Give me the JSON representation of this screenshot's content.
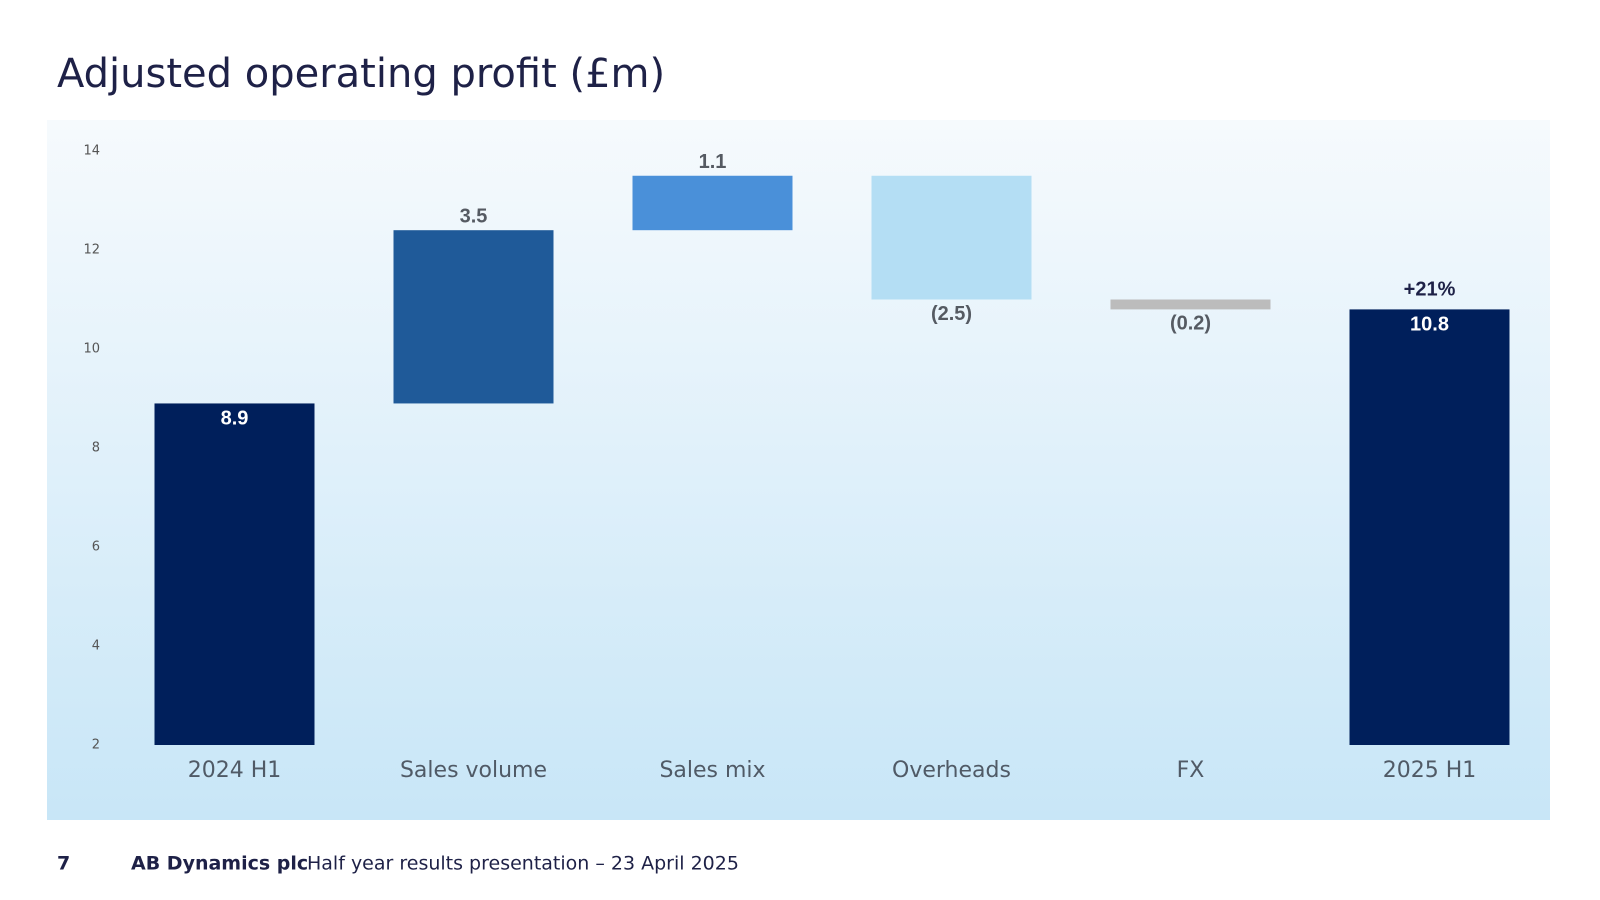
{
  "chart_data": {
    "type": "waterfall",
    "title": "Adjusted operating profit (£m)",
    "categories": [
      "2024 H1",
      "Sales volume",
      "Sales mix",
      "Overheads",
      "FX",
      "2025 H1"
    ],
    "values": [
      8.9,
      3.5,
      1.1,
      -2.5,
      -0.2,
      10.8
    ],
    "value_labels": [
      "8.9",
      "3.5",
      "1.1",
      "(2.5)",
      "(0.2)",
      "10.8"
    ],
    "measure": [
      "total",
      "relative",
      "relative",
      "relative",
      "relative",
      "total"
    ],
    "colors": [
      "#001f5b",
      "#1f5a99",
      "#4a90d9",
      "#b4def4",
      "#bcbcbc",
      "#001f5b"
    ],
    "annotation": "+21%",
    "ylim": [
      2,
      14.5
    ],
    "yticks": [
      2,
      4,
      6,
      8,
      10,
      12,
      14
    ],
    "grid": false
  },
  "footer": {
    "page": "7",
    "company": "AB Dynamics plc",
    "text": "Half year results presentation – 23 April 2025"
  }
}
